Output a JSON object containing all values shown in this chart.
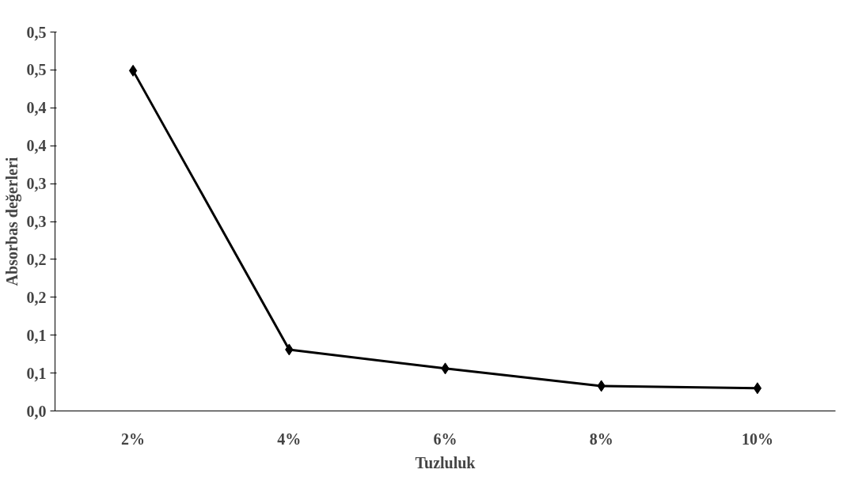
{
  "chart_data": {
    "type": "line",
    "xlabel": "Tuzluluk",
    "ylabel": "Absorbas değerleri",
    "categories": [
      "2%",
      "4%",
      "6%",
      "8%",
      "10%"
    ],
    "series": [
      {
        "color": "#000000",
        "values": [
          0.449,
          0.081,
          0.056,
          0.033,
          0.03
        ]
      }
    ],
    "ylim": [
      0,
      0.5
    ],
    "yticks": [
      {
        "value": 0,
        "label": "0,0"
      },
      {
        "value": 0.05,
        "label": "0,1"
      },
      {
        "value": 0.1,
        "label": "0,1"
      },
      {
        "value": 0.15,
        "label": "0,2"
      },
      {
        "value": 0.2,
        "label": "0,2"
      },
      {
        "value": 0.25,
        "label": "0,3"
      },
      {
        "value": 0.3,
        "label": "0,3"
      },
      {
        "value": 0.35,
        "label": "0,4"
      },
      {
        "value": 0.4,
        "label": "0,4"
      },
      {
        "value": 0.45,
        "label": "0,5"
      },
      {
        "value": 0.5,
        "label": "0,5"
      }
    ],
    "marker": "diamond",
    "line_style": "solid",
    "grid": false
  }
}
